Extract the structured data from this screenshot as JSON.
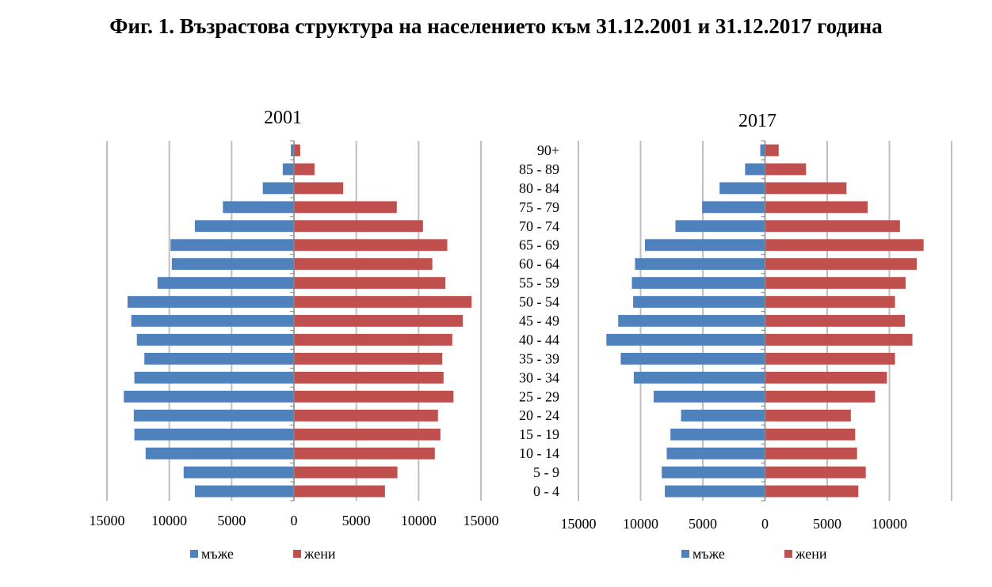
{
  "title": "Фиг. 1. Възрастова структура на населението към 31.12.2001 и 31.12.2017 година",
  "chart_data": [
    {
      "type": "bar",
      "orientation": "horizontal",
      "title": "2001",
      "categories": [
        "90+",
        "85 - 89",
        "80 - 84",
        "75 - 79",
        "70 - 74",
        "65 - 69",
        "60 - 64",
        "55 - 59",
        "50 - 54",
        "45 - 49",
        "40 - 44",
        "35 - 39",
        "30 - 34",
        "25 - 29",
        "20 - 24",
        "15 - 19",
        "10 - 14",
        "5 - 9",
        "0 - 4"
      ],
      "show_category_labels": false,
      "series": [
        {
          "name": "мъже",
          "color": "#4f81bd",
          "values": [
            -250,
            -900,
            -2500,
            -5700,
            -7950,
            -9900,
            -9800,
            -10950,
            -13350,
            -13050,
            -12600,
            -12000,
            -12800,
            -13650,
            -12850,
            -12800,
            -11900,
            -8850,
            -7950
          ]
        },
        {
          "name": "жени",
          "color": "#c0504d",
          "values": [
            500,
            1650,
            3950,
            8250,
            10350,
            12300,
            11100,
            12150,
            14250,
            13550,
            12700,
            11900,
            12000,
            12800,
            11550,
            11750,
            11300,
            8300,
            7300
          ]
        }
      ],
      "xlim": [
        -15000,
        15000
      ],
      "xticks": [
        "15000",
        "10000",
        "5000",
        "0",
        "5000",
        "10000",
        "15000"
      ],
      "grid": true,
      "legend": "bottom"
    },
    {
      "type": "bar",
      "orientation": "horizontal",
      "title": "2017",
      "categories": [
        "90+",
        "85 - 89",
        "80 - 84",
        "75 - 79",
        "70 - 74",
        "65 - 69",
        "60 - 64",
        "55 - 59",
        "50 - 54",
        "45 - 49",
        "40 - 44",
        "35 - 39",
        "30 - 34",
        "25 - 29",
        "20 - 24",
        "15 - 19",
        "10 - 14",
        "5 - 9",
        "0 - 4"
      ],
      "show_category_labels": true,
      "series": [
        {
          "name": "мъже",
          "color": "#4f81bd",
          "values": [
            -380,
            -1600,
            -3650,
            -5050,
            -7200,
            -9650,
            -10450,
            -10700,
            -10600,
            -11800,
            -12750,
            -11600,
            -10550,
            -8950,
            -6750,
            -7600,
            -7900,
            -8300,
            -8050
          ]
        },
        {
          "name": "жени",
          "color": "#c0504d",
          "values": [
            1100,
            3300,
            6550,
            8250,
            10850,
            12750,
            12200,
            11300,
            10450,
            11250,
            11850,
            10450,
            9800,
            8850,
            6900,
            7250,
            7400,
            8100,
            7500
          ]
        }
      ],
      "xlim": [
        -15000,
        15000
      ],
      "xticks": [
        "15000",
        "10000",
        "5000",
        "0",
        "5000",
        "10000",
        ""
      ],
      "grid": true,
      "legend": "bottom"
    }
  ]
}
